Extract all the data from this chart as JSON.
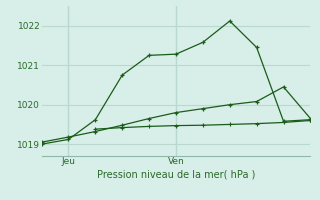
{
  "bg_color": "#d8eee8",
  "grid_color": "#b8d8d0",
  "line_color": "#1a5c1a",
  "ylim": [
    1018.7,
    1022.5
  ],
  "yticks": [
    1019,
    1020,
    1021,
    1022
  ],
  "ytick_labels": [
    "1019",
    "1020",
    "1021",
    "1022"
  ],
  "xlim": [
    0,
    10
  ],
  "xtick_positions": [
    1,
    5
  ],
  "xtick_labels": [
    "Jeu",
    "Ven"
  ],
  "xlabel_text": "Pression niveau de la mer( hPa )",
  "series1_x": [
    0,
    1,
    2,
    3,
    4,
    5,
    6,
    7,
    8,
    9,
    10
  ],
  "series1_y": [
    1019.05,
    1019.18,
    1019.32,
    1019.48,
    1019.65,
    1019.8,
    1019.9,
    1020.0,
    1020.08,
    1020.45,
    1019.65
  ],
  "series2_x": [
    0,
    1,
    2,
    3,
    4,
    5,
    6,
    7,
    8,
    9,
    10
  ],
  "series2_y": [
    1019.0,
    1019.12,
    1019.62,
    1020.75,
    1021.25,
    1021.28,
    1021.58,
    1022.12,
    1021.45,
    1019.58,
    1019.62
  ],
  "series3_x": [
    2,
    3,
    4,
    5,
    6,
    7,
    8,
    9,
    10
  ],
  "series3_y": [
    1019.38,
    1019.42,
    1019.45,
    1019.47,
    1019.48,
    1019.5,
    1019.52,
    1019.55,
    1019.6
  ],
  "grid_xticks": [
    0,
    1,
    2,
    3,
    4,
    5,
    6,
    7,
    8,
    9,
    10
  ]
}
